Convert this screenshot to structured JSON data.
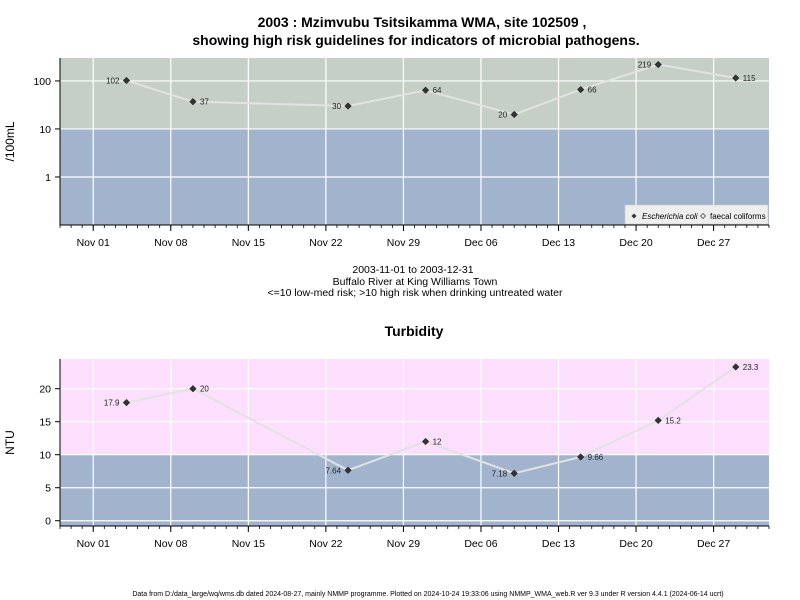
{
  "colors": {
    "high_risk_band": "#c5cfc5",
    "low_risk_band": "#a2b4cd",
    "turbidity_high_band": "#fcdffc",
    "line": "#e2e2e2",
    "point": "#333333",
    "grid": "#ffffff"
  },
  "footer": "Data from D:/data_large/wq/wms.db dated 2024-08-27, mainly NMMP programme. Plotted on 2024-10-24 19:33:06 using NMMP_WMA_web.R ver 9.3 under R version 4.4.1 (2024-06-14 ucrt)",
  "chart_data": [
    {
      "type": "line",
      "title_line1": "2003 : Mzimvubu Tsitsikamma WMA, site 102509 ,",
      "title_line2": "showing high risk guidelines for indicators of microbial pathogens.",
      "ylabel": "/100mL",
      "y_scale": "log",
      "yticks": [
        1,
        10,
        100
      ],
      "ytick_labels": [
        "1",
        "10",
        "100"
      ],
      "ylim": [
        0.1,
        300
      ],
      "x_type": "date",
      "xlim": [
        "2003-10-29",
        "2004-01-01"
      ],
      "xticks": [
        "2003-11-01",
        "2003-11-08",
        "2003-11-15",
        "2003-11-22",
        "2003-11-29",
        "2003-12-06",
        "2003-12-13",
        "2003-12-20",
        "2003-12-27"
      ],
      "xtick_labels": [
        "Nov 01",
        "Nov 08",
        "Nov 15",
        "Nov 22",
        "Nov 29",
        "Dec 06",
        "Dec 13",
        "Dec 20",
        "Dec 27"
      ],
      "threshold": 10,
      "grid": true,
      "legend": {
        "position": "bottom-right",
        "entries": [
          "Escherichia coli",
          "faecal coliforms"
        ]
      },
      "series": [
        {
          "name": "Escherichia coli",
          "x": [
            "2003-11-04",
            "2003-11-10",
            "2003-11-24",
            "2003-12-01",
            "2003-12-09",
            "2003-12-15",
            "2003-12-22",
            "2003-12-29"
          ],
          "values": [
            102,
            37,
            30,
            64,
            20,
            66,
            219,
            115
          ],
          "labels": [
            "102",
            "37",
            "30",
            "64",
            "20",
            "66",
            "219",
            "115"
          ],
          "label_side": [
            "left",
            "right",
            "left",
            "right",
            "left",
            "right",
            "left",
            "right"
          ]
        }
      ],
      "below_text": [
        "2003-11-01 to 2003-12-31",
        "Buffalo River at King Williams Town",
        "<=10 low-med risk; >10 high risk when drinking untreated water"
      ]
    },
    {
      "type": "line",
      "title": "Turbidity",
      "ylabel": "NTU",
      "yticks": [
        0,
        5,
        10,
        15,
        20
      ],
      "ytick_labels": [
        "0",
        "5",
        "10",
        "15",
        "20"
      ],
      "ylim": [
        -0.8,
        24.5
      ],
      "x_type": "date",
      "xlim": [
        "2003-10-29",
        "2004-01-01"
      ],
      "xticks": [
        "2003-11-01",
        "2003-11-08",
        "2003-11-15",
        "2003-11-22",
        "2003-11-29",
        "2003-12-06",
        "2003-12-13",
        "2003-12-20",
        "2003-12-27"
      ],
      "xtick_labels": [
        "Nov 01",
        "Nov 08",
        "Nov 15",
        "Nov 22",
        "Nov 29",
        "Dec 06",
        "Dec 13",
        "Dec 20",
        "Dec 27"
      ],
      "threshold": 10,
      "grid": true,
      "series": [
        {
          "x": [
            "2003-11-04",
            "2003-11-10",
            "2003-11-24",
            "2003-12-01",
            "2003-12-09",
            "2003-12-15",
            "2003-12-22",
            "2003-12-29"
          ],
          "values": [
            17.9,
            20,
            7.64,
            12,
            7.18,
            9.66,
            15.2,
            23.3
          ],
          "labels": [
            "17.9",
            "20",
            "7.64",
            "12",
            "7.18",
            "9.66",
            "15.2",
            "23.3"
          ],
          "label_side": [
            "left",
            "right",
            "left",
            "right",
            "left",
            "right",
            "right",
            "right"
          ]
        }
      ]
    }
  ]
}
